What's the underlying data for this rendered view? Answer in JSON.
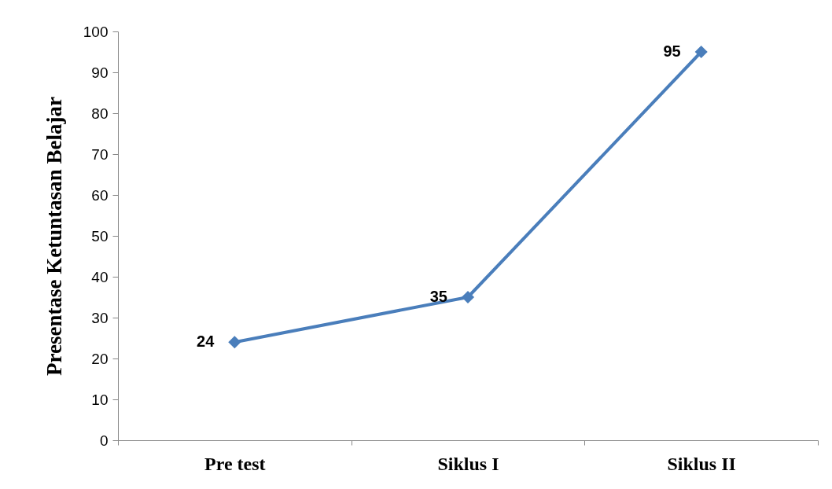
{
  "chart_data": {
    "type": "line",
    "ylabel": "Presentase Ketuntasan Belajar",
    "categories": [
      "Pre test",
      "Siklus I",
      "Siklus II"
    ],
    "series": [
      {
        "color": "#4a7ebb",
        "values": [
          24,
          35,
          95
        ]
      }
    ],
    "ylim": [
      0,
      100
    ],
    "yticks": [
      0,
      10,
      20,
      30,
      40,
      50,
      60,
      70,
      80,
      90,
      100
    ],
    "grid": false,
    "legend": false,
    "marker": "diamond",
    "line_style": "solid",
    "data_labels": true
  }
}
